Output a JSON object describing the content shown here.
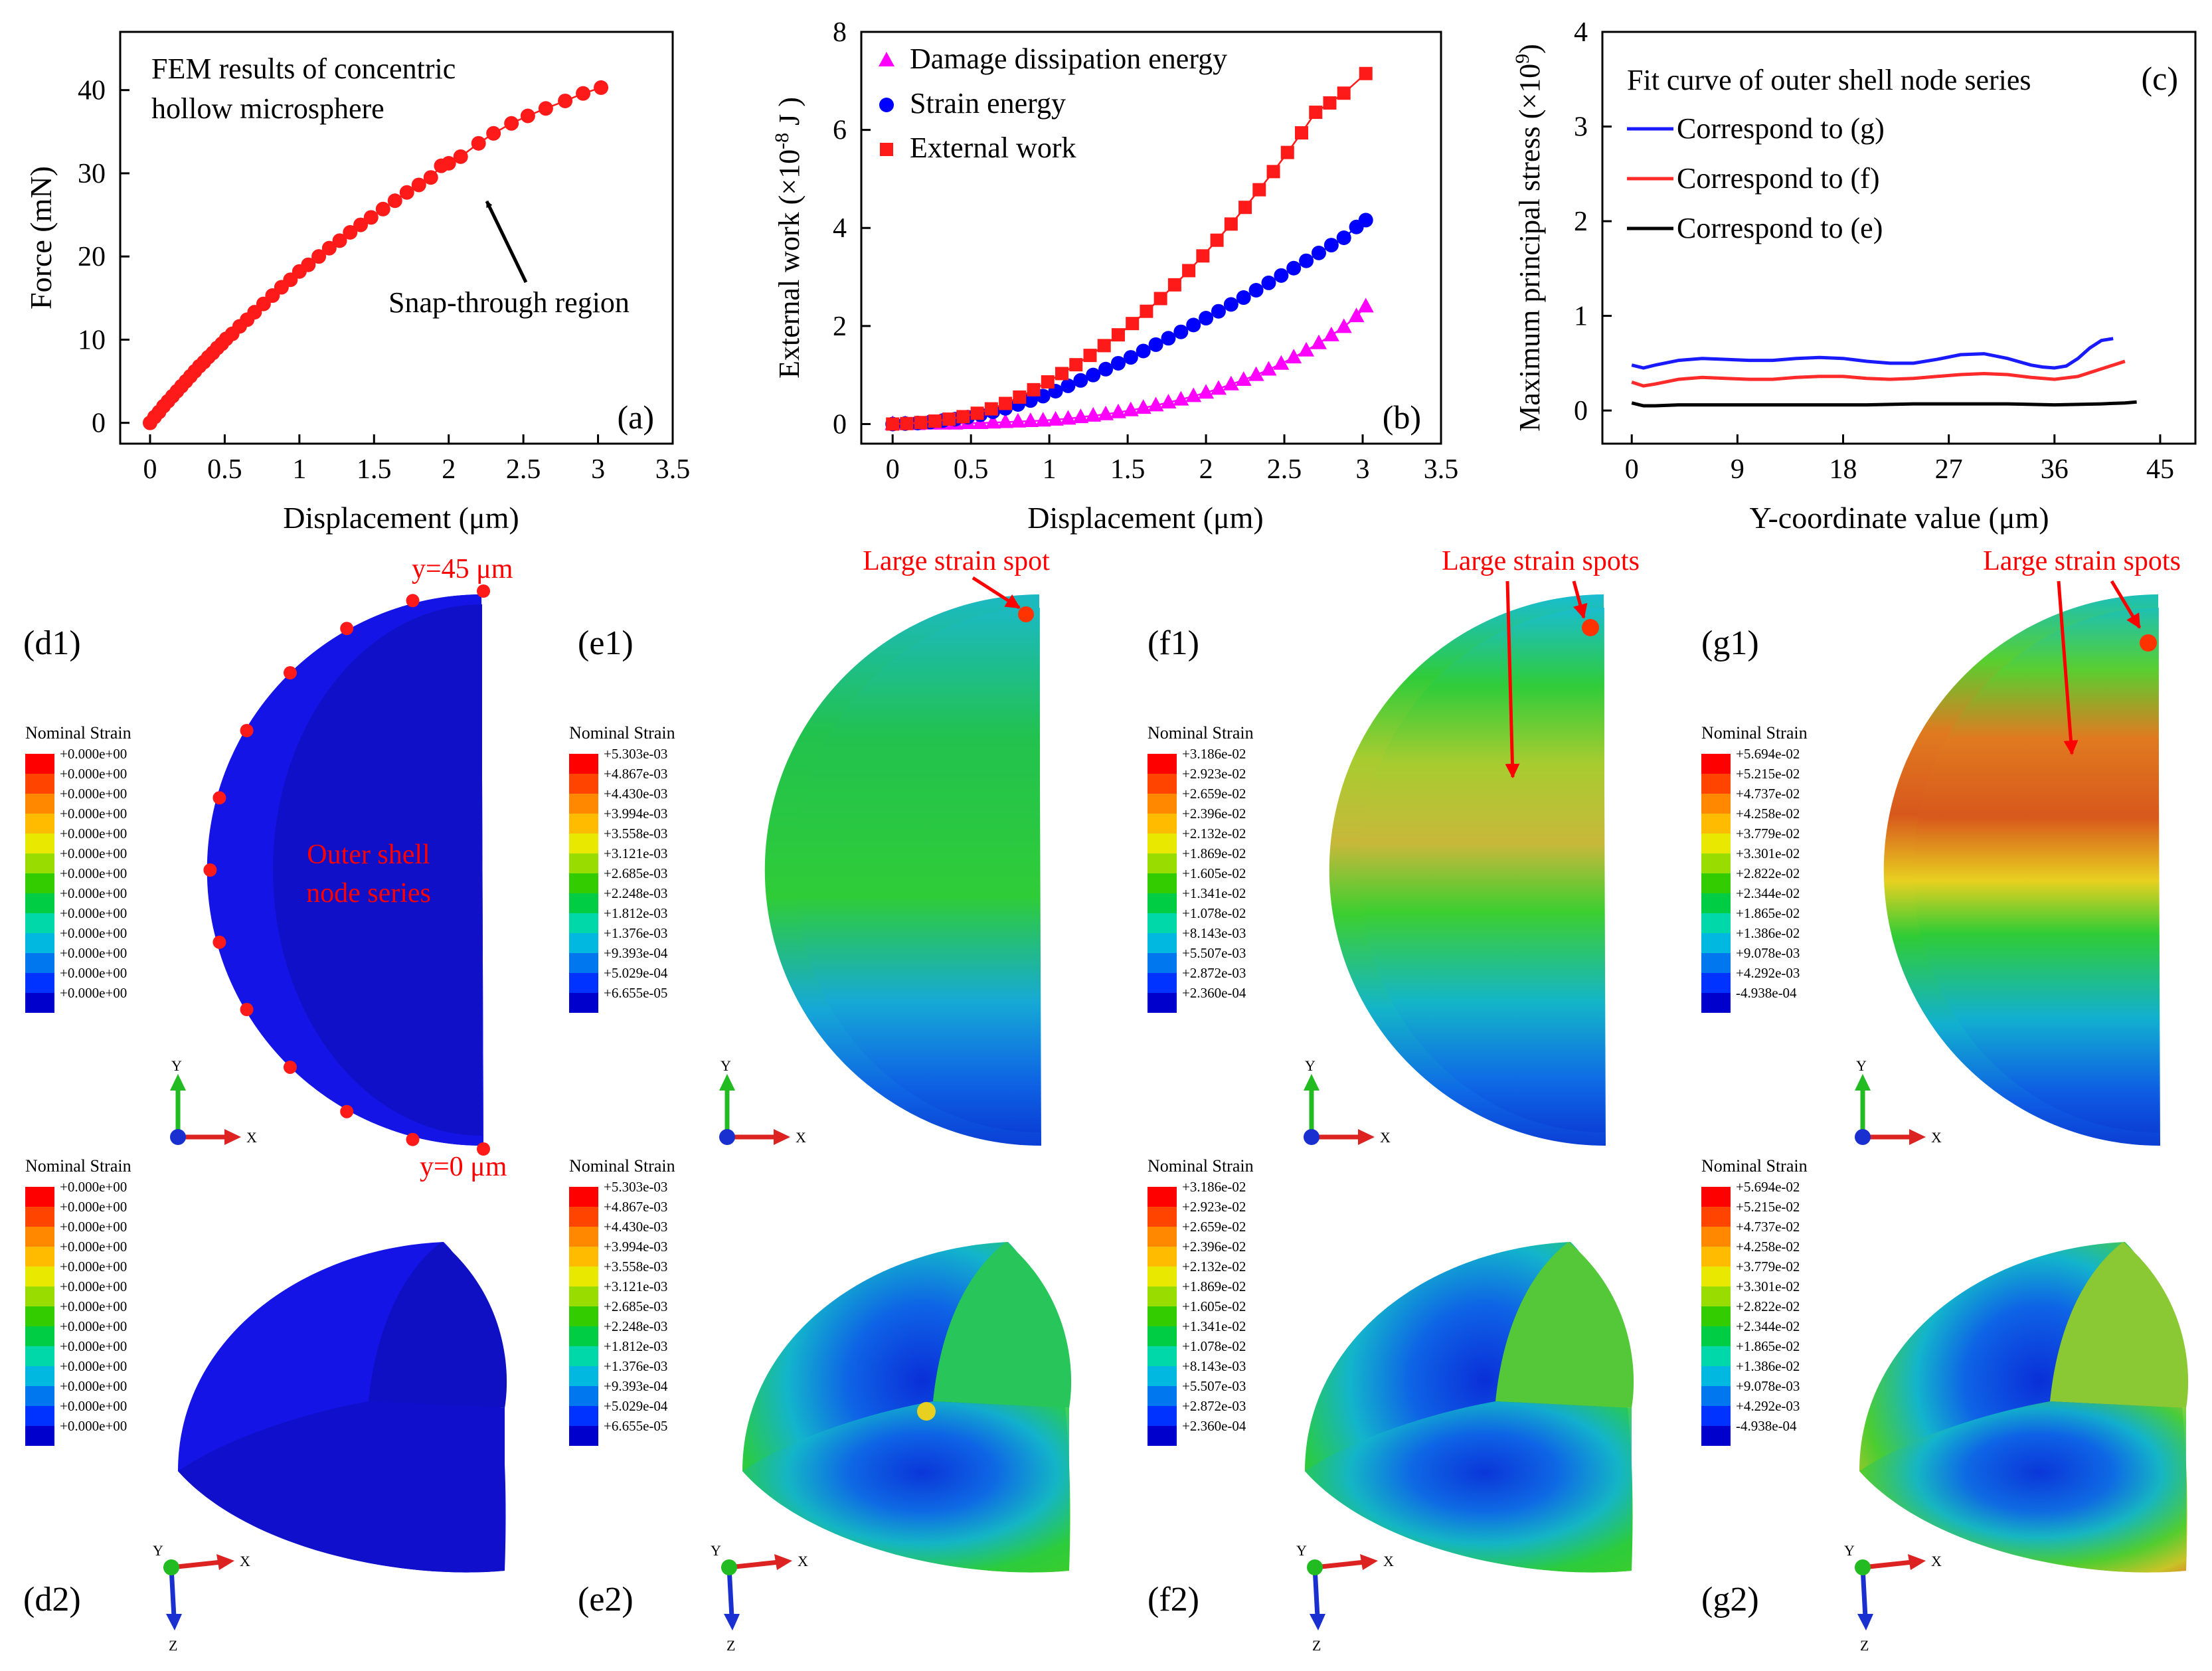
{
  "chart_data": [
    {
      "type": "scatter",
      "panel": "(a)",
      "annotation_title": [
        "FEM results of  concentric",
        "hollow microsphere"
      ],
      "annotation": "Snap-through region",
      "xlabel": "Displacement (μm)",
      "ylabel": "Force (mN)",
      "xlim": [
        -0.2,
        3.5
      ],
      "ylim": [
        -2.5,
        47
      ],
      "xticks": [
        0,
        0.5,
        1,
        1.5,
        2,
        2.5,
        3,
        3.5
      ],
      "xtick_labels": [
        "0",
        "0.5",
        "1",
        "1.5",
        "2",
        "2.5",
        "3",
        "3.5"
      ],
      "yticks": [
        0,
        10,
        20,
        30,
        40
      ],
      "ytick_labels": [
        "0",
        "10",
        "20",
        "30",
        "40"
      ],
      "series": [
        {
          "name": "Force",
          "color": "#ff1a1a",
          "marker": "circle",
          "x": [
            0.0,
            0.03,
            0.06,
            0.09,
            0.12,
            0.15,
            0.18,
            0.21,
            0.24,
            0.27,
            0.3,
            0.33,
            0.36,
            0.39,
            0.42,
            0.45,
            0.48,
            0.51,
            0.55,
            0.6,
            0.65,
            0.7,
            0.76,
            0.82,
            0.88,
            0.94,
            1.0,
            1.06,
            1.13,
            1.2,
            1.27,
            1.34,
            1.41,
            1.48,
            1.56,
            1.64,
            1.72,
            1.8,
            1.88,
            1.95,
            2.0,
            2.08,
            2.2,
            2.3,
            2.42,
            2.53,
            2.65,
            2.78,
            2.9,
            3.02
          ],
          "y": [
            0.0,
            0.7,
            1.3,
            2.0,
            2.6,
            3.2,
            3.8,
            4.4,
            5.0,
            5.6,
            6.2,
            6.8,
            7.3,
            7.9,
            8.4,
            9.0,
            9.5,
            10.1,
            10.7,
            11.6,
            12.4,
            13.3,
            14.3,
            15.3,
            16.3,
            17.2,
            18.2,
            19.0,
            20.0,
            21.0,
            21.9,
            22.9,
            23.8,
            24.7,
            25.7,
            26.7,
            27.7,
            28.6,
            29.5,
            30.9,
            31.2,
            32.0,
            33.6,
            34.8,
            36.0,
            36.9,
            37.8,
            38.7,
            39.6,
            40.3
          ]
        }
      ]
    },
    {
      "type": "line",
      "panel": "(b)",
      "xlabel": "Displacement (μm)",
      "ylabel": "External work (×10",
      "ylabel_sup": "-8",
      "ylabel_suffix": " J )",
      "xlim": [
        -0.2,
        3.5
      ],
      "ylim": [
        -0.4,
        8
      ],
      "xticks": [
        0,
        0.5,
        1,
        1.5,
        2,
        2.5,
        3,
        3.5
      ],
      "xtick_labels": [
        "0",
        "0.5",
        "1",
        "1.5",
        "2",
        "2.5",
        "3",
        "3.5"
      ],
      "yticks": [
        0,
        2,
        4,
        6,
        8
      ],
      "ytick_labels": [
        "0",
        "2",
        "4",
        "6",
        "8"
      ],
      "legend": "top-left",
      "series": [
        {
          "name": "Damage dissipation energy",
          "color": "#ff00ff",
          "marker": "triangle",
          "x": [
            0.0,
            0.08,
            0.16,
            0.24,
            0.32,
            0.4,
            0.48,
            0.56,
            0.64,
            0.72,
            0.8,
            0.88,
            0.96,
            1.04,
            1.12,
            1.2,
            1.28,
            1.36,
            1.44,
            1.52,
            1.6,
            1.68,
            1.76,
            1.84,
            1.92,
            2.0,
            2.08,
            2.16,
            2.24,
            2.32,
            2.4,
            2.48,
            2.56,
            2.64,
            2.72,
            2.8,
            2.88,
            2.96,
            3.02
          ],
          "y": [
            0.0,
            0.0,
            0.0,
            0.01,
            0.01,
            0.01,
            0.02,
            0.02,
            0.03,
            0.04,
            0.05,
            0.06,
            0.07,
            0.09,
            0.11,
            0.14,
            0.17,
            0.2,
            0.24,
            0.28,
            0.33,
            0.38,
            0.44,
            0.5,
            0.57,
            0.64,
            0.72,
            0.81,
            0.9,
            1.0,
            1.11,
            1.23,
            1.36,
            1.5,
            1.65,
            1.81,
            1.98,
            2.2,
            2.4
          ]
        },
        {
          "name": "Strain energy",
          "color": "#0000ff",
          "marker": "circle",
          "x": [
            0.0,
            0.08,
            0.16,
            0.24,
            0.32,
            0.4,
            0.48,
            0.56,
            0.64,
            0.72,
            0.8,
            0.88,
            0.96,
            1.04,
            1.12,
            1.2,
            1.28,
            1.36,
            1.44,
            1.52,
            1.6,
            1.68,
            1.76,
            1.84,
            1.92,
            2.0,
            2.08,
            2.16,
            2.24,
            2.32,
            2.4,
            2.48,
            2.56,
            2.64,
            2.72,
            2.8,
            2.88,
            2.96,
            3.02
          ],
          "y": [
            0.0,
            0.01,
            0.02,
            0.04,
            0.07,
            0.1,
            0.14,
            0.19,
            0.25,
            0.32,
            0.4,
            0.48,
            0.57,
            0.67,
            0.78,
            0.89,
            1.0,
            1.12,
            1.24,
            1.36,
            1.49,
            1.62,
            1.75,
            1.88,
            2.02,
            2.16,
            2.3,
            2.44,
            2.58,
            2.73,
            2.88,
            3.03,
            3.18,
            3.33,
            3.49,
            3.65,
            3.8,
            4.02,
            4.16
          ]
        },
        {
          "name": "External work",
          "color": "#ff1a1a",
          "marker": "square",
          "x": [
            0.0,
            0.09,
            0.18,
            0.27,
            0.36,
            0.45,
            0.54,
            0.63,
            0.72,
            0.81,
            0.9,
            0.99,
            1.08,
            1.17,
            1.26,
            1.35,
            1.44,
            1.53,
            1.62,
            1.71,
            1.8,
            1.89,
            1.98,
            2.07,
            2.16,
            2.25,
            2.34,
            2.43,
            2.52,
            2.61,
            2.7,
            2.79,
            2.88,
            3.02
          ],
          "y": [
            0.0,
            0.01,
            0.03,
            0.06,
            0.1,
            0.15,
            0.22,
            0.31,
            0.42,
            0.55,
            0.7,
            0.86,
            1.03,
            1.21,
            1.4,
            1.6,
            1.82,
            2.05,
            2.3,
            2.56,
            2.84,
            3.13,
            3.43,
            3.75,
            4.08,
            4.42,
            4.78,
            5.15,
            5.54,
            5.94,
            6.36,
            6.55,
            6.75,
            7.15
          ]
        }
      ]
    },
    {
      "type": "line",
      "panel": "(c)",
      "xlabel": "Y-coordinate value (μm)",
      "ylabel": "Maximum principal stress (×10",
      "ylabel_sup": "9",
      "ylabel_suffix": ")",
      "xlim": [
        -2.5,
        48
      ],
      "ylim": [
        -0.35,
        4
      ],
      "xticks": [
        0,
        9,
        18,
        27,
        36,
        45
      ],
      "xtick_labels": [
        "0",
        "9",
        "18",
        "27",
        "36",
        "45"
      ],
      "yticks": [
        0,
        1,
        2,
        3,
        4
      ],
      "ytick_labels": [
        "0",
        "1",
        "2",
        "3",
        "4"
      ],
      "legend_title": "Fit curve of outer shell node series",
      "legend": "top-left",
      "series": [
        {
          "name": "Correspond to (g)",
          "color": "#1a1aff",
          "x": [
            0,
            1,
            2,
            4,
            6,
            8,
            10,
            12,
            14,
            16,
            18,
            20,
            22,
            24,
            26,
            28,
            30,
            32,
            34,
            35,
            36,
            37,
            38,
            39,
            40,
            41
          ],
          "y": [
            0.48,
            0.45,
            0.48,
            0.53,
            0.55,
            0.54,
            0.53,
            0.53,
            0.55,
            0.56,
            0.55,
            0.52,
            0.5,
            0.5,
            0.54,
            0.59,
            0.6,
            0.55,
            0.48,
            0.46,
            0.45,
            0.47,
            0.55,
            0.66,
            0.74,
            0.76
          ]
        },
        {
          "name": "Correspond to (f)",
          "color": "#ff2a2a",
          "x": [
            0,
            1,
            2,
            4,
            6,
            8,
            10,
            12,
            14,
            16,
            18,
            20,
            22,
            24,
            26,
            28,
            30,
            32,
            34,
            36,
            38,
            40,
            41,
            42
          ],
          "y": [
            0.3,
            0.26,
            0.28,
            0.33,
            0.35,
            0.34,
            0.33,
            0.33,
            0.35,
            0.36,
            0.36,
            0.34,
            0.33,
            0.34,
            0.36,
            0.38,
            0.39,
            0.38,
            0.35,
            0.33,
            0.36,
            0.44,
            0.48,
            0.52
          ]
        },
        {
          "name": "Correspond to (e)",
          "color": "#000000",
          "x": [
            0,
            1,
            2,
            4,
            8,
            12,
            16,
            20,
            24,
            28,
            32,
            36,
            40,
            42,
            43
          ],
          "y": [
            0.08,
            0.05,
            0.05,
            0.06,
            0.06,
            0.06,
            0.06,
            0.06,
            0.07,
            0.07,
            0.07,
            0.06,
            0.07,
            0.08,
            0.09
          ]
        }
      ]
    }
  ],
  "labels": {
    "d1": "(d1)",
    "e1": "(e1)",
    "f1": "(f1)",
    "g1": "(g1)",
    "d2": "(d2)",
    "e2": "(e2)",
    "f2": "(f2)",
    "g2": "(g2)",
    "y45": "y=45 μm",
    "y0": "y=0 μm",
    "outer_shell": [
      "Outer shell",
      "node series"
    ],
    "spot_e": "Large strain spot",
    "spot_f": "Large strain spots",
    "spot_g": "Large strain spots"
  },
  "legend_title": "Nominal Strain",
  "triad": {
    "x": "X",
    "y": "Y",
    "z": "Z"
  },
  "strain_legends": {
    "d": [
      "+0.000e+00",
      "+0.000e+00",
      "+0.000e+00",
      "+0.000e+00",
      "+0.000e+00",
      "+0.000e+00",
      "+0.000e+00",
      "+0.000e+00",
      "+0.000e+00",
      "+0.000e+00",
      "+0.000e+00",
      "+0.000e+00",
      "+0.000e+00"
    ],
    "e": [
      "+5.303e-03",
      "+4.867e-03",
      "+4.430e-03",
      "+3.994e-03",
      "+3.558e-03",
      "+3.121e-03",
      "+2.685e-03",
      "+2.248e-03",
      "+1.812e-03",
      "+1.376e-03",
      "+9.393e-04",
      "+5.029e-04",
      "+6.655e-05"
    ],
    "f": [
      "+3.186e-02",
      "+2.923e-02",
      "+2.659e-02",
      "+2.396e-02",
      "+2.132e-02",
      "+1.869e-02",
      "+1.605e-02",
      "+1.341e-02",
      "+1.078e-02",
      "+8.143e-03",
      "+5.507e-03",
      "+2.872e-03",
      "+2.360e-04"
    ],
    "g": [
      "+5.694e-02",
      "+5.215e-02",
      "+4.737e-02",
      "+4.258e-02",
      "+3.779e-02",
      "+3.301e-02",
      "+2.822e-02",
      "+2.344e-02",
      "+1.865e-02",
      "+1.386e-02",
      "+9.078e-03",
      "+4.292e-03",
      "-4.938e-04"
    ]
  },
  "colors": {
    "legend_scale": [
      "#ff0000",
      "#ff4400",
      "#ff8800",
      "#ffbb00",
      "#e8e800",
      "#99dd00",
      "#33cc00",
      "#00cc44",
      "#00d8aa",
      "#00b8e0",
      "#0077ee",
      "#0033ff",
      "#0000cc"
    ],
    "accent_red": "#ff0000",
    "mesh_blue": "#1414e6"
  }
}
